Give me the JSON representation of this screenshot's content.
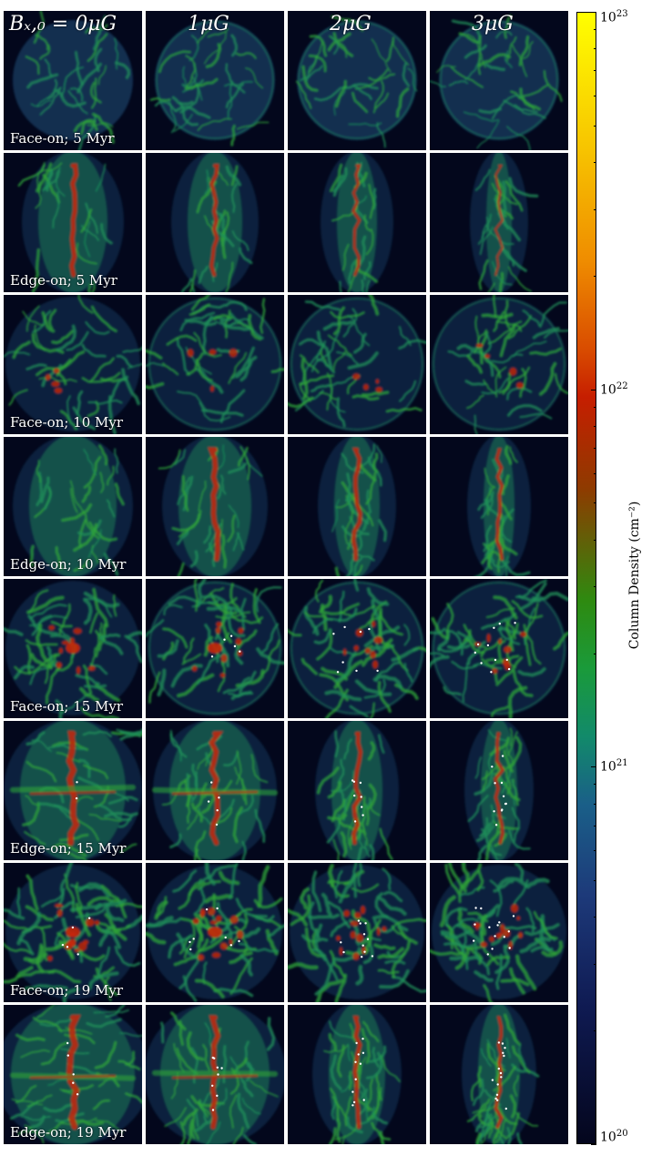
{
  "column_headers": [
    "B_{x,0} = 0μG",
    "1μG",
    "2μG",
    "3μG"
  ],
  "column_headers_display": [
    "Bₓ,₀ = 0μG",
    "1μG",
    "2μG",
    "3μG"
  ],
  "row_labels": [
    "Face-on; 5 Myr",
    "Edge-on; 5 Myr",
    "Face-on; 10 Myr",
    "Edge-on; 10 Myr",
    "Face-on; 15 Myr",
    "Edge-on; 15 Myr",
    "Face-on; 19 Myr",
    "Edge-on; 19 Myr"
  ],
  "colorbar": {
    "title": "Column Density (cm⁻²)",
    "ticks": [
      {
        "base": "10",
        "exp": "23"
      },
      {
        "base": "10",
        "exp": "22"
      },
      {
        "base": "10",
        "exp": "21"
      },
      {
        "base": "10",
        "exp": "20"
      }
    ],
    "colors": [
      "#ffff00",
      "#ef8c00",
      "#c61e00",
      "#2e8a10",
      "#128a6a",
      "#1d3a7a",
      "#04061d"
    ]
  },
  "panel_colors": {
    "background": "#03071c",
    "low": "#1b4f7a",
    "mid": "#1f8f5a",
    "green": "#2fa43a",
    "high": "#c8280a",
    "sink": "#ffffff"
  }
}
